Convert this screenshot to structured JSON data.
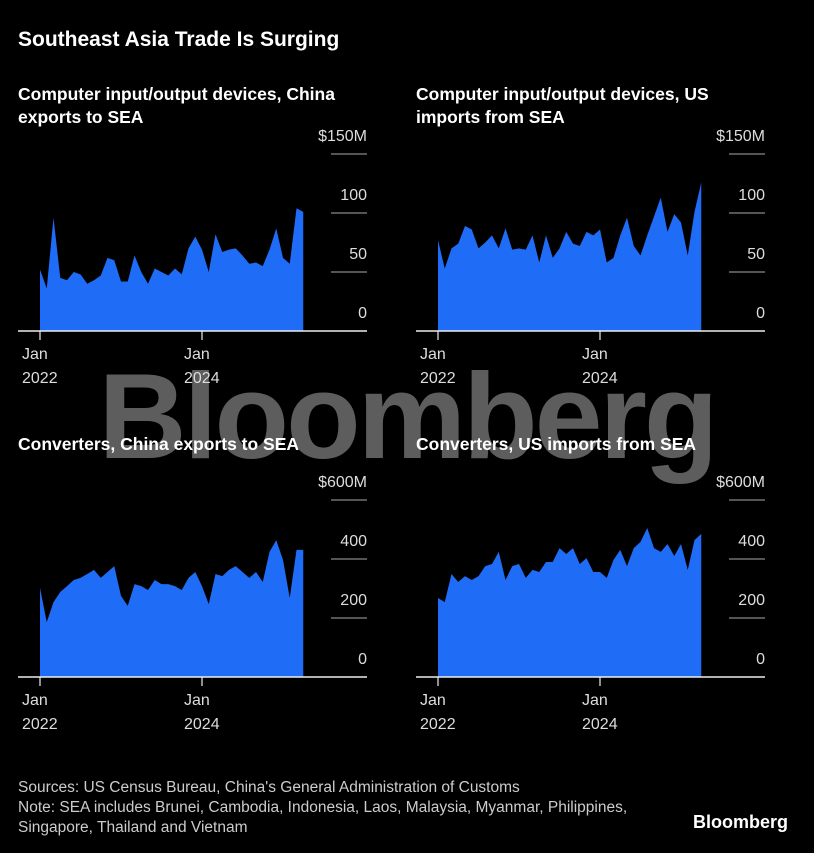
{
  "title": "Southeast Asia Trade Is Surging",
  "chart_data": [
    {
      "type": "area",
      "title": "Computer input/output devices, China exports to SEA",
      "color": "#1f6cf6",
      "categories": [
        "2022-01",
        "2022-02",
        "2022-03",
        "2022-04",
        "2022-05",
        "2022-06",
        "2022-07",
        "2022-08",
        "2022-09",
        "2022-10",
        "2022-11",
        "2022-12",
        "2023-01",
        "2023-02",
        "2023-03",
        "2023-04",
        "2023-05",
        "2023-06",
        "2023-07",
        "2023-08",
        "2023-09",
        "2023-10",
        "2023-11",
        "2023-12",
        "2024-01",
        "2024-02",
        "2024-03",
        "2024-04",
        "2024-05",
        "2024-06",
        "2024-07",
        "2024-08",
        "2024-09",
        "2024-10",
        "2024-11",
        "2024-12",
        "2025-01",
        "2025-02",
        "2025-03",
        "2025-04"
      ],
      "values": [
        52,
        36,
        96,
        45,
        43,
        50,
        48,
        40,
        43,
        47,
        62,
        60,
        42,
        42,
        64,
        50,
        40,
        53,
        50,
        47,
        53,
        48,
        70,
        80,
        69,
        50,
        82,
        67,
        69,
        70,
        64,
        57,
        58,
        55,
        69,
        87,
        62,
        57,
        104,
        101
      ],
      "ylim": [
        0,
        150
      ],
      "yticks": [
        0,
        50,
        100,
        {
          "value": 150,
          "label": "$150M"
        }
      ],
      "xticks": [
        {
          "value": "2022-01",
          "label": "Jan\n2022"
        },
        {
          "value": "2024-01",
          "label": "Jan\n2024"
        }
      ]
    },
    {
      "type": "area",
      "title": "Computer input/output devices, US imports from SEA",
      "color": "#1f6cf6",
      "categories": [
        "2022-01",
        "2022-02",
        "2022-03",
        "2022-04",
        "2022-05",
        "2022-06",
        "2022-07",
        "2022-08",
        "2022-09",
        "2022-10",
        "2022-11",
        "2022-12",
        "2023-01",
        "2023-02",
        "2023-03",
        "2023-04",
        "2023-05",
        "2023-06",
        "2023-07",
        "2023-08",
        "2023-09",
        "2023-10",
        "2023-11",
        "2023-12",
        "2024-01",
        "2024-02",
        "2024-03",
        "2024-04",
        "2024-05",
        "2024-06",
        "2024-07",
        "2024-08",
        "2024-09",
        "2024-10",
        "2024-11",
        "2024-12",
        "2025-01",
        "2025-02",
        "2025-03",
        "2025-04"
      ],
      "values": [
        77,
        53,
        70,
        74,
        89,
        86,
        70,
        75,
        81,
        70,
        87,
        69,
        70,
        69,
        81,
        58,
        81,
        62,
        70,
        84,
        74,
        72,
        84,
        81,
        86,
        58,
        62,
        81,
        96,
        72,
        64,
        81,
        97,
        113,
        84,
        99,
        92,
        64,
        101,
        126
      ],
      "ylim": [
        0,
        150
      ],
      "yticks": [
        0,
        50,
        100,
        {
          "value": 150,
          "label": "$150M"
        }
      ],
      "xticks": [
        {
          "value": "2022-01",
          "label": "Jan\n2022"
        },
        {
          "value": "2024-01",
          "label": "Jan\n2024"
        }
      ]
    },
    {
      "type": "area",
      "title": "Converters, China exports to SEA",
      "color": "#1f6cf6",
      "categories": [
        "2022-01",
        "2022-02",
        "2022-03",
        "2022-04",
        "2022-05",
        "2022-06",
        "2022-07",
        "2022-08",
        "2022-09",
        "2022-10",
        "2022-11",
        "2022-12",
        "2023-01",
        "2023-02",
        "2023-03",
        "2023-04",
        "2023-05",
        "2023-06",
        "2023-07",
        "2023-08",
        "2023-09",
        "2023-10",
        "2023-11",
        "2023-12",
        "2024-01",
        "2024-02",
        "2024-03",
        "2024-04",
        "2024-05",
        "2024-06",
        "2024-07",
        "2024-08",
        "2024-09",
        "2024-10",
        "2024-11",
        "2024-12",
        "2025-01",
        "2025-02",
        "2025-03",
        "2025-04"
      ],
      "values": [
        302,
        186,
        254,
        288,
        308,
        329,
        336,
        349,
        363,
        336,
        356,
        376,
        275,
        241,
        315,
        308,
        295,
        329,
        315,
        315,
        308,
        295,
        336,
        356,
        308,
        247,
        349,
        342,
        363,
        376,
        356,
        336,
        356,
        322,
        424,
        464,
        397,
        268,
        431,
        431
      ],
      "ylim": [
        0,
        600
      ],
      "yticks": [
        0,
        200,
        400,
        {
          "value": 600,
          "label": "$600M"
        }
      ],
      "xticks": [
        {
          "value": "2022-01",
          "label": "Jan\n2022"
        },
        {
          "value": "2024-01",
          "label": "Jan\n2024"
        }
      ]
    },
    {
      "type": "area",
      "title": "Converters, US imports from SEA",
      "color": "#1f6cf6",
      "categories": [
        "2022-01",
        "2022-02",
        "2022-03",
        "2022-04",
        "2022-05",
        "2022-06",
        "2022-07",
        "2022-08",
        "2022-09",
        "2022-10",
        "2022-11",
        "2022-12",
        "2023-01",
        "2023-02",
        "2023-03",
        "2023-04",
        "2023-05",
        "2023-06",
        "2023-07",
        "2023-08",
        "2023-09",
        "2023-10",
        "2023-11",
        "2023-12",
        "2024-01",
        "2024-02",
        "2024-03",
        "2024-04",
        "2024-05",
        "2024-06",
        "2024-07",
        "2024-08",
        "2024-09",
        "2024-10",
        "2024-11",
        "2024-12",
        "2025-01",
        "2025-02",
        "2025-03",
        "2025-04"
      ],
      "values": [
        268,
        254,
        349,
        322,
        342,
        329,
        342,
        376,
        383,
        424,
        329,
        376,
        383,
        336,
        363,
        356,
        390,
        390,
        437,
        417,
        437,
        383,
        403,
        356,
        356,
        336,
        397,
        431,
        376,
        437,
        458,
        505,
        437,
        424,
        451,
        410,
        451,
        363,
        464,
        485
      ],
      "ylim": [
        0,
        600
      ],
      "yticks": [
        0,
        200,
        400,
        {
          "value": 600,
          "label": "$600M"
        }
      ],
      "xticks": [
        {
          "value": "2022-01",
          "label": "Jan\n2022"
        },
        {
          "value": "2024-01",
          "label": "Jan\n2024"
        }
      ]
    }
  ],
  "source": "Sources: US Census Bureau, China's General Administration of Customs",
  "note": "Note: SEA includes Brunei, Cambodia, Indonesia, Laos, Malaysia, Myanmar, Philippines, Singapore, Thailand and Vietnam",
  "watermark": "Bloomberg",
  "brand": "Bloomberg"
}
